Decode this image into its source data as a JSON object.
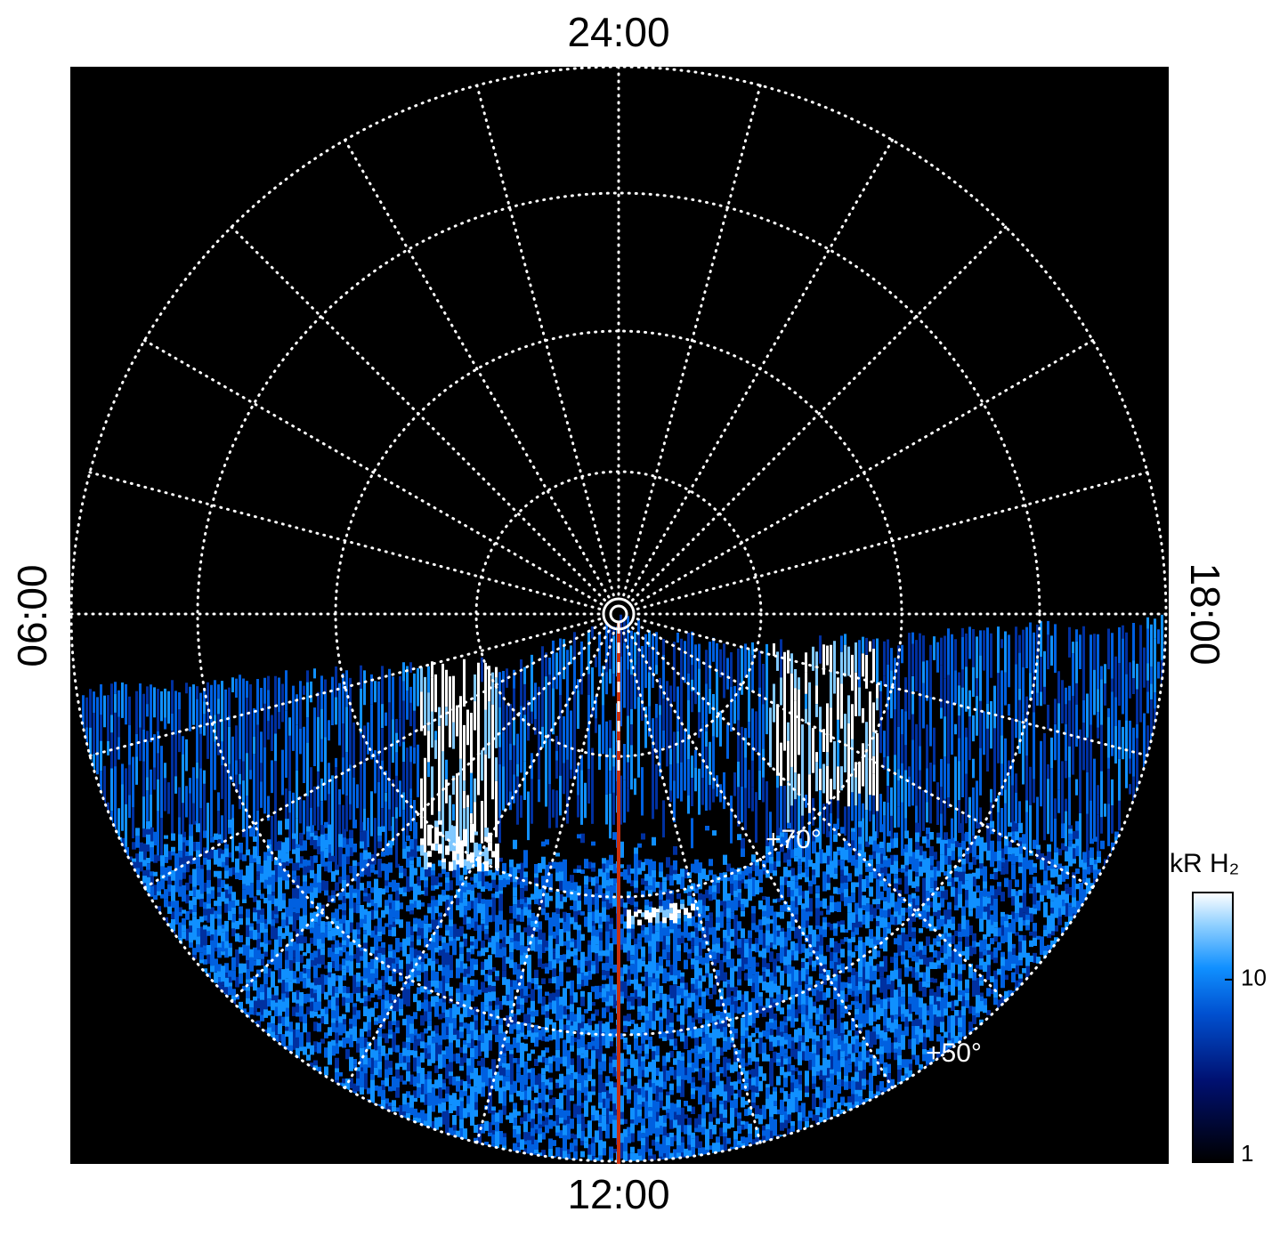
{
  "figure": {
    "local_time_labels": {
      "top": "24:00",
      "bottom": "12:00",
      "left": "06:00",
      "right": "18:00"
    },
    "latitude_labels": [
      "+70°",
      "+50°"
    ],
    "colorbar": {
      "label": "kR H₂",
      "scale": "log",
      "lim": [
        1,
        30
      ],
      "ticks": [
        1,
        10
      ]
    }
  }
}
